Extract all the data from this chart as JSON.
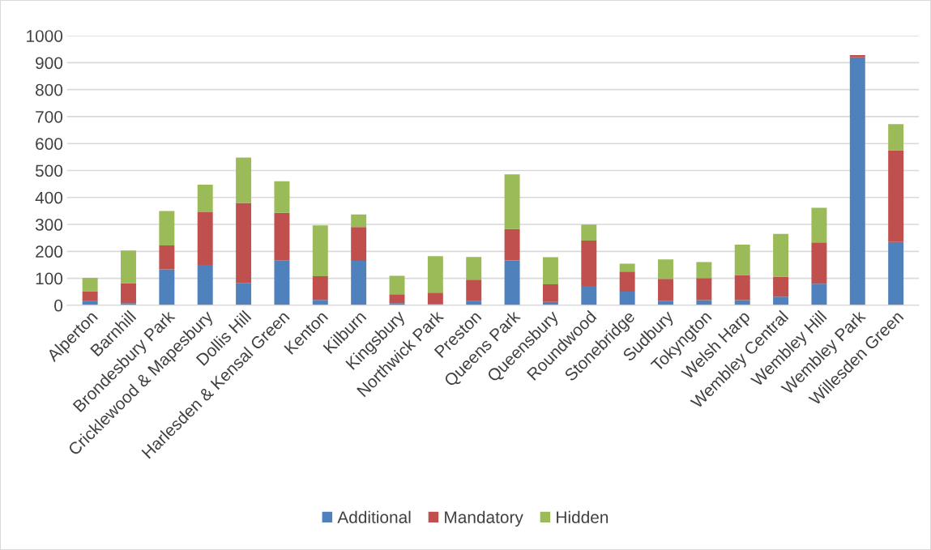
{
  "chart_data": {
    "type": "bar",
    "stacked": true,
    "categories": [
      "Alperton",
      "Barnhill",
      "Brondesbury Park",
      "Cricklewood & Mapesbury",
      "Dollis Hill",
      "Harlesden & Kensal Green",
      "Kenton",
      "Kilburn",
      "Kingsbury",
      "Northwick Park",
      "Preston",
      "Queens Park",
      "Queensbury",
      "Roundwood",
      "Stonebridge",
      "Sudbury",
      "Tokyngton",
      "Welsh Harp",
      "Wembley Central",
      "Wembley Hill",
      "Wembley Park",
      "Willesden Green"
    ],
    "series": [
      {
        "name": "Additional",
        "color": "#4f81bd",
        "values": [
          15,
          8,
          133,
          150,
          83,
          167,
          20,
          165,
          8,
          5,
          15,
          166,
          12,
          72,
          51,
          17,
          19,
          19,
          32,
          80,
          920,
          235
        ]
      },
      {
        "name": "Mandatory",
        "color": "#c0504d",
        "values": [
          37,
          74,
          89,
          195,
          297,
          176,
          88,
          125,
          33,
          42,
          80,
          117,
          66,
          168,
          74,
          81,
          82,
          93,
          74,
          153,
          8,
          340
        ]
      },
      {
        "name": "Hidden",
        "color": "#9bbb59",
        "values": [
          50,
          121,
          128,
          102,
          168,
          117,
          188,
          47,
          68,
          135,
          84,
          203,
          100,
          59,
          29,
          72,
          59,
          113,
          159,
          129,
          0,
          97
        ]
      }
    ],
    "ylim": [
      0,
      1000
    ],
    "yticks": [
      0,
      100,
      200,
      300,
      400,
      500,
      600,
      700,
      800,
      900,
      1000
    ],
    "grid": "y",
    "legend": "bottom"
  }
}
